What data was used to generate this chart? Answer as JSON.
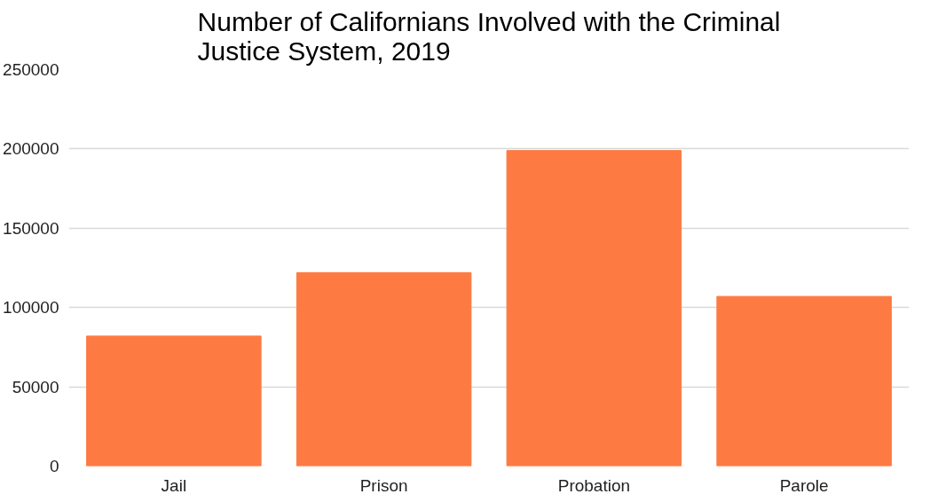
{
  "chart_data": {
    "type": "bar",
    "title": "Number of Californians Involved with the Criminal\nJustice System, 2019",
    "categories": [
      "Jail",
      "Prison",
      "Probation",
      "Parole"
    ],
    "values": [
      82000,
      122000,
      199000,
      107000
    ],
    "color": "#fd7a43",
    "ylim": [
      0,
      250000
    ],
    "yticks": [
      0,
      50000,
      100000,
      150000,
      200000,
      250000
    ],
    "grid": "y"
  }
}
